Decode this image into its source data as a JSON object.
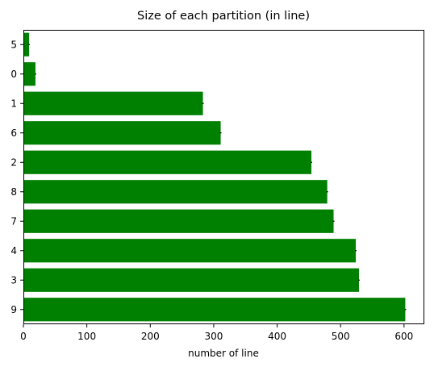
{
  "chart_data": {
    "type": "bar",
    "orientation": "horizontal",
    "title": "Size of each partition (in line)",
    "xlabel": "number of line",
    "ylabel": "",
    "categories": [
      "5",
      "0",
      "1",
      "6",
      "2",
      "8",
      "7",
      "4",
      "3",
      "9"
    ],
    "values": [
      9,
      19,
      283,
      311,
      454,
      479,
      489,
      524,
      529,
      602
    ],
    "xlim": [
      0,
      632
    ],
    "xticks": [
      0,
      100,
      200,
      300,
      400,
      500,
      600
    ],
    "grid": false,
    "legend": "none",
    "bar_color": "#008000",
    "error_bar_color": "#000000"
  }
}
